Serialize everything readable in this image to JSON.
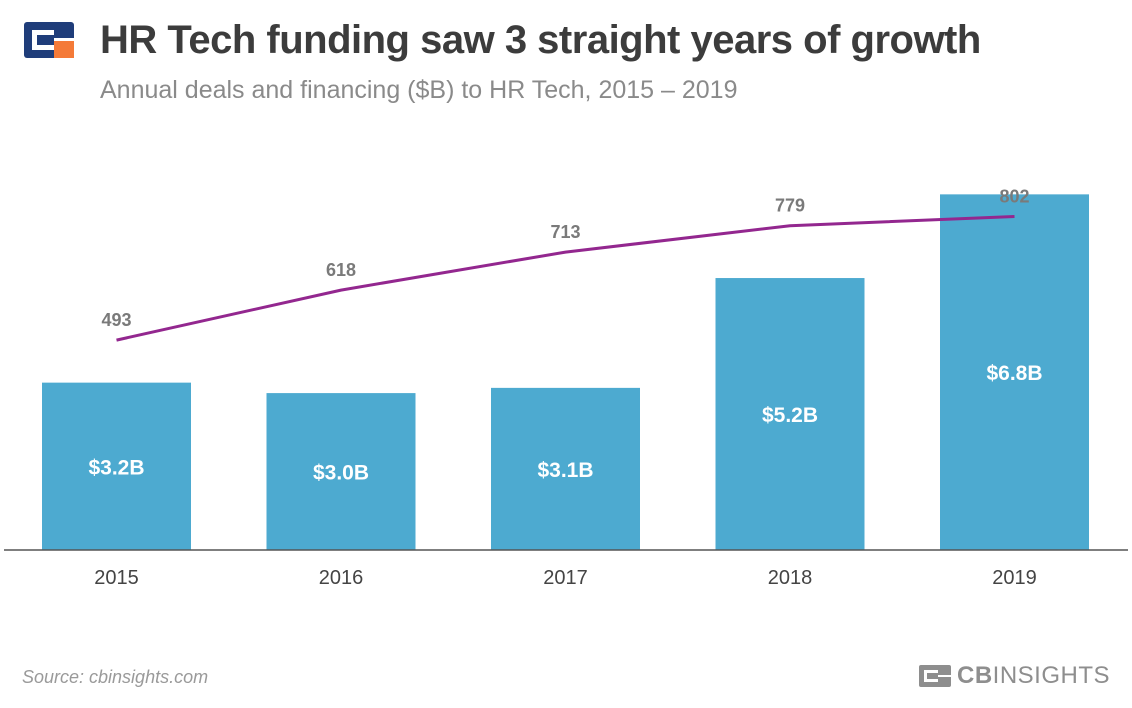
{
  "header": {
    "title": "HR Tech funding saw 3 straight years of growth",
    "subtitle": "Annual deals and financing ($B) to HR Tech, 2015 – 2019"
  },
  "footer": {
    "source": "Source: cbinsights.com",
    "brand_prefix": "CB",
    "brand_suffix": "INSIGHTS"
  },
  "colors": {
    "bar": "#4daad0",
    "line": "#93278f",
    "title": "#3c3c3c",
    "subtitle": "#8a8a8a",
    "logo_navy": "#1f3d7a",
    "logo_orange": "#f47a38"
  },
  "chart_data": {
    "type": "bar",
    "title": "HR Tech funding saw 3 straight years of growth",
    "categories": [
      "2015",
      "2016",
      "2017",
      "2018",
      "2019"
    ],
    "series": [
      {
        "name": "Financing ($B)",
        "type": "bar",
        "values": [
          3.2,
          3.0,
          3.1,
          5.2,
          6.8
        ],
        "labels": [
          "$3.2B",
          "$3.0B",
          "$3.1B",
          "$5.2B",
          "$6.8B"
        ]
      },
      {
        "name": "Deals",
        "type": "line",
        "values": [
          493,
          618,
          713,
          779,
          802
        ],
        "labels": [
          "493",
          "618",
          "713",
          "779",
          "802"
        ]
      }
    ],
    "xlabel": "",
    "ylabel": "",
    "bar_ylim": [
      0,
      8
    ],
    "line_ylim": [
      0,
      1000
    ],
    "grid": false
  }
}
